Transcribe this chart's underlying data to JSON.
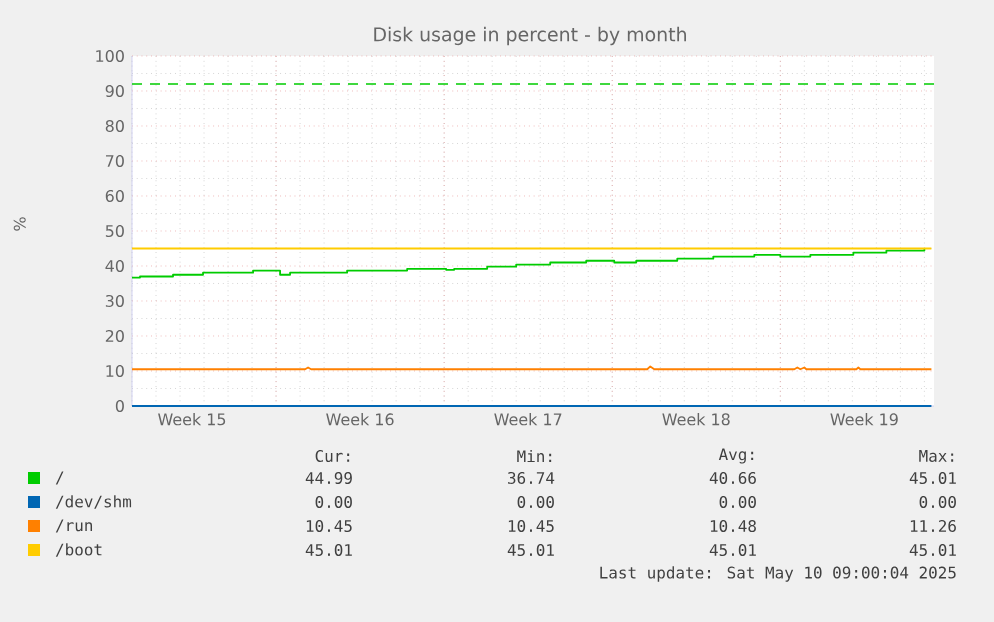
{
  "chart_data": {
    "type": "line",
    "title": "Disk usage in percent - by month",
    "ylabel": "%",
    "xlim": [
      "2025-04-08T00:00",
      "2025-05-11T09:36"
    ],
    "ylim": [
      0,
      100
    ],
    "xticks": [
      {
        "value": "2025-04-10T12:00",
        "label": "Week 15"
      },
      {
        "value": "2025-04-14T00:00",
        "label": null
      },
      {
        "value": "2025-04-17T12:00",
        "label": "Week 16"
      },
      {
        "value": "2025-04-21T00:00",
        "label": null
      },
      {
        "value": "2025-04-24T12:00",
        "label": "Week 17"
      },
      {
        "value": "2025-04-28T00:00",
        "label": null
      },
      {
        "value": "2025-05-01T12:00",
        "label": "Week 18"
      },
      {
        "value": "2025-05-05T00:00",
        "label": null
      },
      {
        "value": "2025-05-08T12:00",
        "label": "Week 19"
      }
    ],
    "yticks": [
      0,
      10,
      20,
      30,
      40,
      50,
      60,
      70,
      80,
      90,
      100
    ],
    "grid": true,
    "legend": "bottom",
    "series": [
      {
        "name": "/",
        "color": "#00cc00",
        "type": "step",
        "x": [
          "2025-04-08T00:00",
          "2025-04-08T08:00",
          "2025-04-09T17:00",
          "2025-04-10T23:00",
          "2025-04-13T01:00",
          "2025-04-14T04:00",
          "2025-04-14T14:00",
          "2025-04-16T23:00",
          "2025-04-19T11:00",
          "2025-04-21T02:00",
          "2025-04-21T10:00",
          "2025-04-22T19:00",
          "2025-04-24T00:00",
          "2025-04-25T10:00",
          "2025-04-26T22:00",
          "2025-04-28T02:00",
          "2025-04-29T00:00",
          "2025-04-30T17:00",
          "2025-05-02T05:00",
          "2025-05-03T22:00",
          "2025-05-05T00:00",
          "2025-05-06T06:00",
          "2025-05-08T01:00",
          "2025-05-09T10:00",
          "2025-05-11T00:00"
        ],
        "values": [
          36.7,
          37.0,
          37.5,
          38.1,
          38.7,
          37.5,
          38.1,
          38.7,
          39.2,
          38.9,
          39.2,
          39.8,
          40.4,
          41.0,
          41.5,
          41.0,
          41.5,
          42.1,
          42.7,
          43.2,
          42.7,
          43.2,
          43.8,
          44.4,
          45.0
        ]
      },
      {
        "name": "/dev/shm",
        "color": "#0066b3",
        "x": [
          "2025-04-08T00:00",
          "2025-05-11T07:00"
        ],
        "values": [
          0,
          0
        ]
      },
      {
        "name": "/run",
        "color": "#ff8000",
        "x": [
          "2025-04-08T00:00",
          "2025-04-15T05:00",
          "2025-04-15T08:00",
          "2025-04-15T11:00",
          "2025-04-29T11:00",
          "2025-04-29T14:00",
          "2025-04-29T18:00",
          "2025-05-05T14:00",
          "2025-05-05T17:00",
          "2025-05-05T20:00",
          "2025-05-06T00:00",
          "2025-05-06T02:00",
          "2025-05-08T04:00",
          "2025-05-08T06:00",
          "2025-05-08T08:00",
          "2025-05-11T07:00"
        ],
        "values": [
          10.5,
          10.5,
          11.0,
          10.5,
          10.5,
          11.3,
          10.5,
          10.5,
          11.0,
          10.5,
          11.0,
          10.5,
          10.5,
          11.0,
          10.5,
          10.5
        ]
      },
      {
        "name": "/boot",
        "color": "#ffcc00",
        "x": [
          "2025-04-08T00:00",
          "2025-05-11T07:00"
        ],
        "values": [
          45.0,
          45.0
        ]
      }
    ],
    "ref_lines": [
      {
        "axis": "y",
        "value": 92,
        "color": "#00cc00",
        "line_style": "dashed"
      }
    ],
    "annotations": [
      "Cur:",
      "Min:",
      "Avg:",
      "Max:",
      "44.99",
      "36.74",
      "40.66",
      "45.01",
      "0.00",
      "0.00",
      "0.00",
      "0.00",
      "10.45",
      "10.45",
      "10.48",
      "11.26",
      "45.01",
      "45.01",
      "45.01",
      "45.01",
      "Last update: Sat May 10 09:00:04 2025"
    ]
  }
}
